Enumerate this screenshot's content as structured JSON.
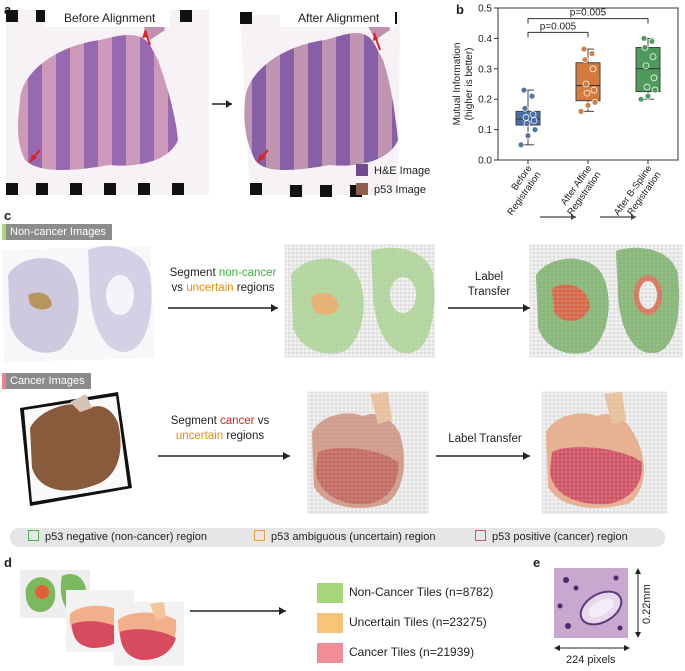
{
  "panels": {
    "a": {
      "letter": "a",
      "before_title": "Before Alignment",
      "after_title": "After Alignment",
      "legend": [
        {
          "label": "H&E Image",
          "color": "#6f4a8e"
        },
        {
          "label": "p53 Image",
          "color": "#8a6048"
        }
      ]
    },
    "b": {
      "letter": "b",
      "pvalues": [
        "p=0.005",
        "p=0.005"
      ]
    },
    "c": {
      "letter": "c",
      "noncancer_header": "Non-cancer Images",
      "cancer_header": "Cancer Images",
      "noncancer_step1": {
        "prefix": "Segment ",
        "highlight": "non-cancer",
        "middle": "vs ",
        "highlight2": "uncertain",
        "suffix": " regions"
      },
      "noncancer_step2": [
        "Label",
        "Transfer"
      ],
      "cancer_step1": {
        "prefix": "Segment ",
        "highlight": "cancer",
        "middle": " vs",
        "highlight2": "uncertain",
        "suffix": " regions"
      },
      "cancer_step2": "Label Transfer",
      "legend": [
        {
          "label": "p53 negative (non-cancer) region",
          "color": "#4caf50"
        },
        {
          "label": "p53 ambiguous (uncertain) region",
          "color": "#f0a030"
        },
        {
          "label": "p53 positive (cancer) region",
          "color": "#e05050"
        }
      ],
      "colors": {
        "noncancer": "#3cb043",
        "uncertain": "#f08c00",
        "cancer": "#e02020",
        "noncancer_accent": "#a8d67a",
        "cancer_accent": "#f08090"
      }
    },
    "d": {
      "letter": "d",
      "tiles": [
        {
          "label": "Non-Cancer Tiles (n=8782)",
          "color": "#a6d67c"
        },
        {
          "label": "Uncertain Tiles (n=23275)",
          "color": "#f7c57a"
        },
        {
          "label": "Cancer Tiles (n=21939)",
          "color": "#f08d96"
        }
      ]
    },
    "e": {
      "letter": "e",
      "height_label": "0.22mm",
      "width_label": "224 pixels"
    }
  },
  "chart_data": {
    "type": "box",
    "title": "",
    "xlabel": "",
    "ylabel": "Mutual Information (higher is better)",
    "ylabel_lines": [
      "Mutual Information",
      "(higher is better)"
    ],
    "ylim": [
      0.0,
      0.5
    ],
    "yticks": [
      "0.0",
      "0.1",
      "0.2",
      "0.3",
      "0.4",
      "0.5"
    ],
    "categories": [
      "Before Registration",
      "After Affine Registration",
      "After B-Spline Registration"
    ],
    "category_lines": [
      [
        "Before",
        "Registration"
      ],
      [
        "After Affine",
        "Registration"
      ],
      [
        "After B-Spline",
        "Registration"
      ]
    ],
    "colors": [
      "#4a6fa5",
      "#d47a3c",
      "#4e9a5c"
    ],
    "boxes": [
      {
        "min": 0.05,
        "q1": 0.115,
        "median": 0.135,
        "q3": 0.16,
        "max": 0.23
      },
      {
        "min": 0.16,
        "q1": 0.195,
        "median": 0.245,
        "q3": 0.32,
        "max": 0.365
      },
      {
        "min": 0.2,
        "q1": 0.225,
        "median": 0.3,
        "q3": 0.37,
        "max": 0.4
      }
    ],
    "points": [
      [
        0.05,
        0.08,
        0.1,
        0.12,
        0.13,
        0.14,
        0.15,
        0.17,
        0.21,
        0.23
      ],
      [
        0.16,
        0.18,
        0.19,
        0.22,
        0.23,
        0.25,
        0.3,
        0.33,
        0.35,
        0.365
      ],
      [
        0.2,
        0.21,
        0.23,
        0.24,
        0.27,
        0.31,
        0.34,
        0.37,
        0.39,
        0.4
      ]
    ],
    "comparisons": [
      {
        "from": 0,
        "to": 1,
        "label": "p=0.005"
      },
      {
        "from": 0,
        "to": 2,
        "label": "p=0.005"
      }
    ],
    "grid": false,
    "legend": "none"
  }
}
